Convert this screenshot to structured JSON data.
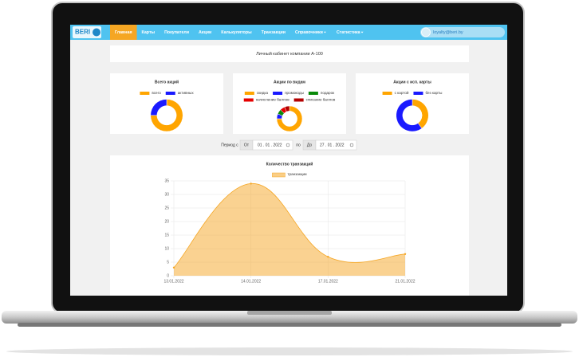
{
  "nav": {
    "logo": "BERI",
    "items": [
      "Главная",
      "Карты",
      "Покупатели",
      "Акции",
      "Калькуляторы",
      "Транзакции",
      "Справочники",
      "Статистика"
    ],
    "user": "loyalty@beri.by"
  },
  "header": "Личный кабинет компании A-100",
  "filter": {
    "label": "Период с",
    "from_label": "От",
    "from": "01 . 01 . 2022",
    "to_prefix": "по",
    "to_label": "До",
    "to": "27 . 01 . 2022"
  },
  "chart_data": [
    {
      "type": "pie",
      "title": "Всего акций",
      "donut": true,
      "categories": [
        "всего",
        "активных"
      ],
      "values": [
        3,
        1
      ],
      "colors": [
        "#ffa500",
        "#1a1aff"
      ]
    },
    {
      "type": "pie",
      "title": "Акции по видам",
      "donut": true,
      "categories": [
        "скидка",
        "промокоды",
        "подарок",
        "начисление баллов",
        "списание баллов"
      ],
      "values": [
        12,
        1,
        1,
        1,
        1
      ],
      "colors": [
        "#ffa500",
        "#1a1aff",
        "#0a8a0a",
        "#e60000",
        "#b30000"
      ]
    },
    {
      "type": "pie",
      "title": "Акции с исп. карты",
      "donut": true,
      "categories": [
        "с картой",
        "без карты"
      ],
      "values": [
        2,
        3
      ],
      "colors": [
        "#ffa500",
        "#1a1aff"
      ]
    },
    {
      "type": "line",
      "title": "Количество транзакций",
      "categories": [
        "13.01.2022",
        "14.01.2022",
        "17.01.2022",
        "21.01.2022"
      ],
      "series": [
        {
          "name": "транзакции",
          "color": "#f5a623",
          "values": [
            3,
            34,
            7,
            8
          ]
        }
      ],
      "ylim": [
        0,
        35
      ],
      "yticks": [
        0,
        5,
        10,
        15,
        20,
        25,
        30,
        35
      ],
      "grid": true,
      "fill": true
    }
  ]
}
